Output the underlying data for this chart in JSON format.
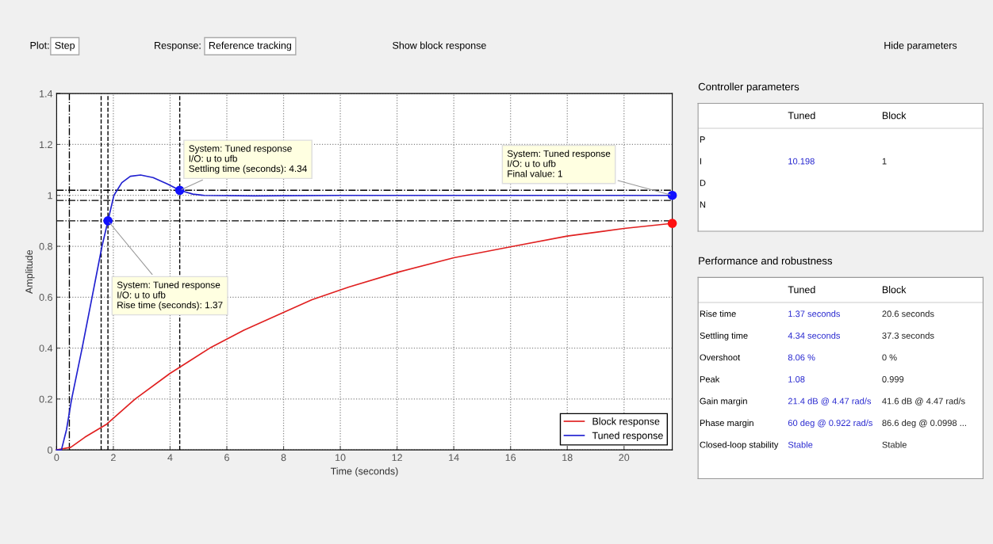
{
  "chart_data": [
    {
      "type": "line",
      "xlabel": "Time (seconds)",
      "ylabel": "Amplitude",
      "xlim": [
        0,
        21.7
      ],
      "ylim": [
        0,
        1.4
      ],
      "xticks": [
        0,
        2,
        4,
        6,
        8,
        10,
        12,
        14,
        16,
        18,
        20
      ],
      "yticks": [
        0,
        0.2,
        0.4,
        0.6,
        0.8,
        1,
        1.2,
        1.4
      ],
      "grid": true,
      "legend": "bottom right",
      "series": [
        {
          "name": "Block response",
          "color": "#e02020",
          "x": [
            0,
            0.5,
            1,
            1.75,
            2.77,
            3.99,
            5.4,
            6.6,
            8,
            9,
            10.3,
            12.1,
            14,
            16.1,
            18,
            20,
            21.7
          ],
          "values": [
            0,
            0.01,
            0.05,
            0.1,
            0.2,
            0.3,
            0.4,
            0.47,
            0.54,
            0.59,
            0.64,
            0.7,
            0.755,
            0.8,
            0.84,
            0.87,
            0.89
          ]
        },
        {
          "name": "Tuned response",
          "color": "#2020d0",
          "x": [
            0,
            0.17,
            0.35,
            0.53,
            0.9,
            1.25,
            1.6,
            1.81,
            2.02,
            2.3,
            2.6,
            2.96,
            3.4,
            3.9,
            4.34,
            4.8,
            5.2,
            7,
            10,
            21.7
          ],
          "values": [
            0,
            0,
            0.08,
            0.2,
            0.4,
            0.6,
            0.8,
            0.9,
            1.0,
            1.05,
            1.075,
            1.08,
            1.07,
            1.045,
            1.02,
            1.005,
            1.0,
            0.998,
            1.0,
            1.0
          ]
        },
        {
          "type": "scatter",
          "color": "#1010ff",
          "marker": "circle",
          "x": [
            1.81,
            4.34,
            21.7
          ],
          "values": [
            0.9,
            1.02,
            1
          ]
        },
        {
          "type": "scatter",
          "color": "#ff1010",
          "marker": "circle",
          "x": [
            21.7
          ],
          "values": [
            0.89
          ]
        }
      ],
      "ref_lines": [
        {
          "axis": "y",
          "value": 1.02,
          "line_style": "dashdot",
          "color": "#000000"
        },
        {
          "axis": "y",
          "value": 0.98,
          "line_style": "dashdot",
          "color": "#000000"
        },
        {
          "axis": "y",
          "value": 0.9,
          "line_style": "dashdot",
          "color": "#000000"
        },
        {
          "axis": "x",
          "value": 0.45,
          "line_style": "dashdot",
          "color": "#000000"
        },
        {
          "axis": "x",
          "value": 1.57,
          "line_style": "dashed",
          "color": "#000000"
        },
        {
          "axis": "x",
          "value": 1.81,
          "line_style": "dashed",
          "color": "#000000"
        },
        {
          "axis": "x",
          "value": 4.34,
          "line_style": "dashed",
          "color": "#000000"
        }
      ],
      "annotations": [
        {
          "text": "System: Tuned response\nI/O: u to ufb\nRise time (seconds): 1.37",
          "x": 1.81,
          "y": 0.9
        },
        {
          "text": "System: Tuned response\nI/O: u to ufb\nSettling time (seconds): 4.34",
          "x": 4.34,
          "y": 1.02
        },
        {
          "text": "System: Tuned response\nI/O: u to ufb\nFinal value: 1",
          "x": 21.7,
          "y": 1
        },
        "Plot:",
        "Step",
        "Response:",
        "Reference tracking",
        "Show block response",
        "Hide parameters"
      ]
    },
    {
      "type": "other",
      "title": "Controller parameters",
      "categories": [
        "Tuned",
        "Block"
      ],
      "y_categories": [
        "P",
        "I",
        "D",
        "N"
      ],
      "cell_labels": [
        [
          null,
          null
        ],
        [
          "10.198",
          "1"
        ],
        [
          null,
          null
        ],
        [
          null,
          null
        ]
      ]
    },
    {
      "type": "other",
      "title": "Performance and robustness",
      "categories": [
        "Tuned",
        "Block"
      ],
      "y_categories": [
        "Rise time",
        "Settling time",
        "Overshoot",
        "Peak",
        "Gain margin",
        "Phase margin",
        "Closed-loop stability"
      ],
      "cell_labels": [
        [
          "1.37 seconds",
          "20.6 seconds"
        ],
        [
          "4.34 seconds",
          "37.3 seconds"
        ],
        [
          "8.06 %",
          "0 %"
        ],
        [
          "1.08",
          "0.999"
        ],
        [
          "21.4 dB @ 4.47 rad/s",
          "41.6 dB @ 4.47 rad/s"
        ],
        [
          "60 deg @ 0.922 rad/s",
          "86.6 deg @ 0.0998 ..."
        ],
        [
          "Stable",
          "Stable"
        ]
      ]
    }
  ]
}
